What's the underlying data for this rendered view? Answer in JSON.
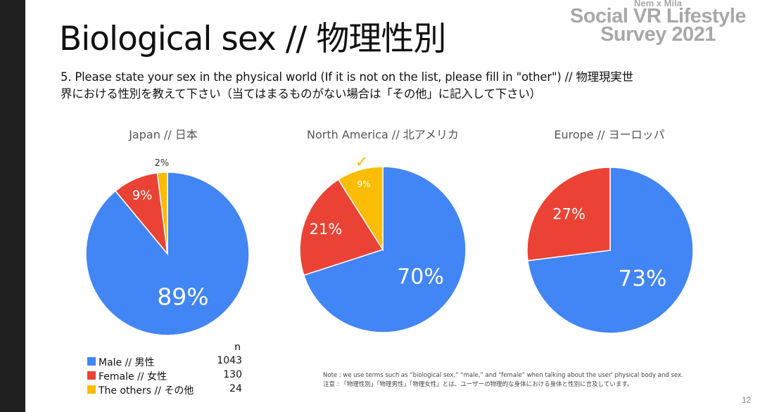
{
  "slide": {
    "title": "Biological sex // 物理性別",
    "brand": {
      "line1": "Nem x Mila",
      "line2": "Social VR Lifestyle",
      "line3": "Survey 2021"
    },
    "question_line1": "5. Please state your sex in the physical world (If it is not on the list, please fill in \"other\") // 物理現実世",
    "question_line2": "界における性別を教えて下さい（当てはまるものがない場合は「その他」に記入して下さい）",
    "note_line1": "Note : we use terms such as “biological sex,” “male,” and “female” when talking about the user' physical body and sex.",
    "note_line2": "注意 : 「物理性別」「物理男性」「物理女性」とは、ユーザーの物理的な身体における身体と性別に言及しています。",
    "page_number": "12",
    "colors": {
      "male": "#4285f4",
      "female": "#ea4335",
      "other": "#fbbc04",
      "brand": "#a8a8a8"
    }
  },
  "legend": {
    "n_header": "n",
    "items": [
      {
        "label": "Male // 男性",
        "n": "1043"
      },
      {
        "label": "Female // 女性",
        "n": "130"
      },
      {
        "label": "The others // その他",
        "n": "24"
      }
    ]
  },
  "annotations": {
    "checkmark": "✓"
  },
  "chart_data": [
    {
      "type": "pie",
      "title": "Japan // 日本",
      "categories": [
        "Male // 男性",
        "Female // 女性",
        "The others // その他"
      ],
      "values": [
        89,
        9,
        2
      ],
      "labels": [
        "89%",
        "9%",
        "2%"
      ]
    },
    {
      "type": "pie",
      "title": "North America // 北アメリカ",
      "categories": [
        "Male // 男性",
        "Female // 女性",
        "The others // その他"
      ],
      "values": [
        70,
        21,
        9
      ],
      "labels": [
        "70%",
        "21%",
        "9%"
      ]
    },
    {
      "type": "pie",
      "title": "Europe // ヨーロッパ",
      "categories": [
        "Male // 男性",
        "Female // 女性"
      ],
      "values": [
        73,
        27
      ],
      "labels": [
        "73%",
        "27%"
      ]
    }
  ]
}
